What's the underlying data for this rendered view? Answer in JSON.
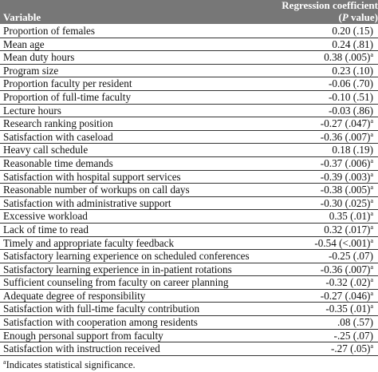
{
  "table": {
    "header": {
      "variable": "Variable",
      "coef_line1": "Regression coefficient",
      "coef_open": "(",
      "coef_p": "P",
      "coef_close": " value)"
    },
    "rows": [
      {
        "variable": "Proportion of females",
        "value": "0.20 (.15)"
      },
      {
        "variable": "Mean age",
        "value": "0.24 (.81)"
      },
      {
        "variable": "Mean duty hours",
        "value": "0.38 (.005)",
        "sig": "a"
      },
      {
        "variable": "Program size",
        "value": "0.23 (.10)"
      },
      {
        "variable": "Proportion faculty per resident",
        "value": "-0.06 (.70)"
      },
      {
        "variable": "Proportion of full-time faculty",
        "value": "-0.10 (.51)"
      },
      {
        "variable": "Lecture hours",
        "value": "-0.03 (.86)"
      },
      {
        "variable": "Research ranking position",
        "value": "-0.27 (.047)",
        "sig": "a"
      },
      {
        "variable": "Satisfaction with caseload",
        "value": "-0.36 (.007)",
        "sig": "a"
      },
      {
        "variable": "Heavy call schedule",
        "value": "0.18 (.19)"
      },
      {
        "variable": "Reasonable time demands",
        "value": "-0.37 (.006)",
        "sig": "a"
      },
      {
        "variable": "Satisfaction with hospital support services",
        "value": "-0.39 (.003)",
        "sig": "a"
      },
      {
        "variable": "Reasonable number of workups on call days",
        "value": "-0.38 (.005)",
        "sig": "a"
      },
      {
        "variable": "Satisfaction with administrative support",
        "value": "-0.30 (.025)",
        "sig": "a"
      },
      {
        "variable": "Excessive workload",
        "value": "0.35 (.01)",
        "sig": "a"
      },
      {
        "variable": "Lack of time to read",
        "value": "0.32 (.017)",
        "sig": "a"
      },
      {
        "variable": "Timely and appropriate faculty feedback",
        "value": "-0.54 (<.001)",
        "sig": "a"
      },
      {
        "variable": "Satisfactory learning experience on scheduled conferences",
        "value": "-0.25 (.07)"
      },
      {
        "variable": "Satisfactory learning experience in in-patient rotations",
        "value": "-0.36 (.007)",
        "sig": "a"
      },
      {
        "variable": "Sufficient counseling from faculty on career planning",
        "value": "-0.32 (.02)",
        "sig": "a"
      },
      {
        "variable": "Adequate degree of responsibility",
        "value": "-0.27 (.046)",
        "sig": "a"
      },
      {
        "variable": "Satisfaction with full-time faculty contribution",
        "value": "-0.35 (.01)",
        "sig": "a"
      },
      {
        "variable": "Satisfaction with cooperation among residents",
        "value": ".08 (.57)"
      },
      {
        "variable": "Enough personal support from faculty",
        "value": "-.25 (.07)"
      },
      {
        "variable": "Satisfaction with instruction received",
        "value": "-.27 (.05)",
        "sig": "a"
      }
    ],
    "footnote": {
      "mark": "a",
      "text": "Indicates statistical significance."
    }
  }
}
